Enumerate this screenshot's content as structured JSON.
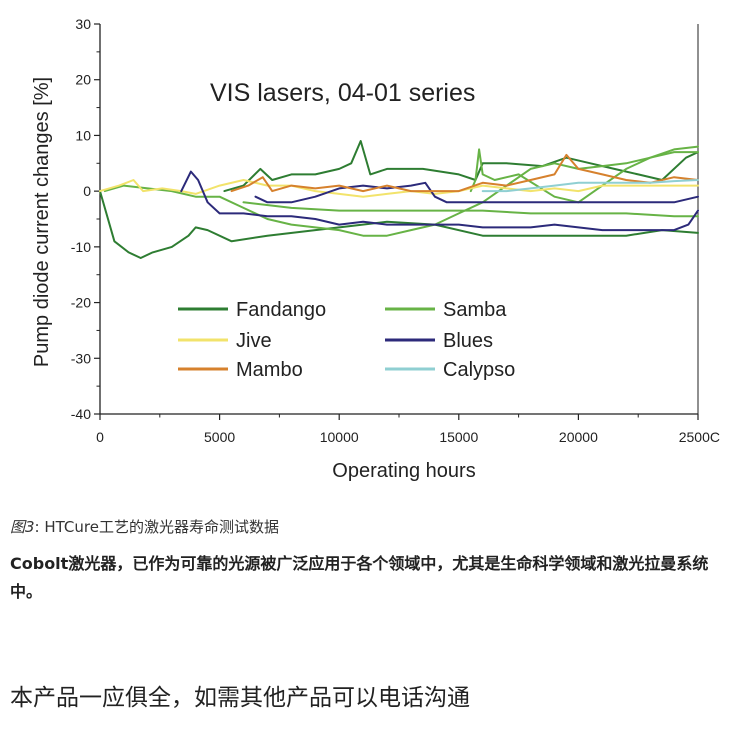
{
  "chart_data": {
    "type": "line",
    "title": "VIS lasers, 04-01 series",
    "xlabel": "Operating hours",
    "ylabel": "Pump diode current changes [%]",
    "xlim": [
      0,
      25000
    ],
    "ylim": [
      -40,
      30
    ],
    "x_ticks": [
      "0",
      "5000",
      "10000",
      "15000",
      "20000",
      "2500C"
    ],
    "y_ticks": [
      "30",
      "20",
      "10",
      "0",
      "-10",
      "-20",
      "-30",
      "-40"
    ],
    "grid": false,
    "legend_position": "lower-center",
    "series": [
      {
        "name": "Fandango",
        "color": "#2e7d32",
        "points": [
          [
            0,
            0
          ],
          [
            600,
            -9
          ],
          [
            1200,
            -11
          ],
          [
            1700,
            -12
          ],
          [
            2200,
            -11
          ],
          [
            3000,
            -10
          ],
          [
            3700,
            -8
          ],
          [
            4000,
            -6.5
          ],
          [
            4500,
            -7
          ],
          [
            5500,
            -9
          ],
          [
            7000,
            -8
          ],
          [
            9000,
            -7
          ],
          [
            10000,
            -6.5
          ],
          [
            12000,
            -5.5
          ],
          [
            14000,
            -6
          ],
          [
            16000,
            -8
          ],
          [
            18000,
            -8
          ],
          [
            20000,
            -8
          ],
          [
            22000,
            -8
          ],
          [
            23500,
            -7
          ],
          [
            25000,
            -7.5
          ]
        ]
      },
      {
        "name": "Fandango",
        "color": "#2e7d32",
        "points": [
          [
            5200,
            0
          ],
          [
            6000,
            1
          ],
          [
            6700,
            4
          ],
          [
            7200,
            2
          ],
          [
            8000,
            3
          ],
          [
            9000,
            3
          ],
          [
            10000,
            4
          ],
          [
            10500,
            5
          ],
          [
            10900,
            9
          ],
          [
            11300,
            3
          ],
          [
            12000,
            4
          ],
          [
            13500,
            4
          ],
          [
            15000,
            3
          ],
          [
            15700,
            2
          ],
          [
            16000,
            5
          ],
          [
            17000,
            5
          ],
          [
            18500,
            4.5
          ],
          [
            19500,
            6
          ],
          [
            20500,
            5
          ],
          [
            21500,
            4
          ],
          [
            22500,
            3
          ],
          [
            23500,
            2
          ],
          [
            24500,
            6
          ],
          [
            25000,
            7
          ]
        ]
      },
      {
        "name": "Samba",
        "color": "#67b346",
        "points": [
          [
            200,
            0
          ],
          [
            1000,
            1
          ],
          [
            2000,
            0.5
          ],
          [
            3000,
            0
          ],
          [
            4000,
            -1
          ],
          [
            5000,
            -1
          ],
          [
            6000,
            -3
          ],
          [
            7000,
            -5
          ],
          [
            8000,
            -6
          ],
          [
            9000,
            -6.5
          ],
          [
            10000,
            -7
          ],
          [
            11000,
            -8
          ],
          [
            12000,
            -8
          ],
          [
            13000,
            -7
          ],
          [
            14000,
            -6
          ],
          [
            15000,
            -4
          ],
          [
            16000,
            -2
          ],
          [
            17000,
            1
          ],
          [
            18000,
            4
          ],
          [
            19000,
            5
          ],
          [
            20000,
            4
          ],
          [
            21000,
            4.5
          ],
          [
            22000,
            5
          ],
          [
            23000,
            6
          ],
          [
            24000,
            7
          ],
          [
            25000,
            7
          ]
        ]
      },
      {
        "name": "Samba",
        "color": "#67b346",
        "points": [
          [
            6000,
            -2
          ],
          [
            8000,
            -3
          ],
          [
            10000,
            -3.5
          ],
          [
            12000,
            -3.5
          ],
          [
            14000,
            -3.5
          ],
          [
            16000,
            -3.5
          ],
          [
            18000,
            -4
          ],
          [
            20000,
            -4
          ],
          [
            22000,
            -4
          ],
          [
            24000,
            -4.5
          ],
          [
            25000,
            -4.5
          ]
        ]
      },
      {
        "name": "Samba",
        "color": "#67b346",
        "points": [
          [
            15500,
            0
          ],
          [
            15700,
            2
          ],
          [
            15850,
            7.5
          ],
          [
            16000,
            3
          ],
          [
            16500,
            2
          ],
          [
            17500,
            3
          ],
          [
            19000,
            -1
          ],
          [
            20000,
            -2
          ],
          [
            21000,
            1
          ],
          [
            22000,
            4
          ],
          [
            23000,
            6
          ],
          [
            24000,
            7.5
          ],
          [
            25000,
            8
          ]
        ]
      },
      {
        "name": "Jive",
        "color": "#f2e36b",
        "points": [
          [
            0,
            0
          ],
          [
            800,
            1
          ],
          [
            1400,
            2
          ],
          [
            1800,
            0
          ],
          [
            2600,
            0.5
          ],
          [
            3400,
            0
          ],
          [
            4000,
            -0.5
          ],
          [
            5000,
            1
          ],
          [
            6000,
            2
          ],
          [
            7000,
            1
          ],
          [
            8000,
            1
          ],
          [
            9000,
            0
          ],
          [
            10000,
            -0.5
          ],
          [
            11000,
            -1
          ],
          [
            12000,
            -0.5
          ],
          [
            13000,
            0
          ],
          [
            14000,
            -0.5
          ],
          [
            15000,
            0
          ],
          [
            16000,
            1
          ],
          [
            17000,
            0.5
          ],
          [
            18000,
            0
          ],
          [
            19000,
            0.5
          ],
          [
            20000,
            0
          ],
          [
            21000,
            1
          ],
          [
            22000,
            1
          ],
          [
            23000,
            1
          ],
          [
            24000,
            1
          ],
          [
            25000,
            1
          ]
        ]
      },
      {
        "name": "Blues",
        "color": "#2c2a7a",
        "points": [
          [
            3400,
            0
          ],
          [
            3800,
            3.5
          ],
          [
            4100,
            2
          ],
          [
            4500,
            -2
          ],
          [
            5000,
            -4
          ],
          [
            6000,
            -4
          ],
          [
            7000,
            -4.5
          ],
          [
            8000,
            -4.5
          ],
          [
            9000,
            -5
          ],
          [
            10000,
            -6
          ],
          [
            11000,
            -5.5
          ],
          [
            12000,
            -6
          ],
          [
            13000,
            -6
          ],
          [
            14000,
            -6
          ],
          [
            15000,
            -6
          ],
          [
            16000,
            -6.5
          ],
          [
            17000,
            -6.5
          ],
          [
            18000,
            -6.5
          ],
          [
            19000,
            -6
          ],
          [
            20000,
            -6.5
          ],
          [
            21000,
            -7
          ],
          [
            22000,
            -7
          ],
          [
            23000,
            -7
          ],
          [
            24000,
            -7
          ],
          [
            24600,
            -6
          ],
          [
            25000,
            -3.5
          ]
        ]
      },
      {
        "name": "Blues",
        "color": "#2c2a7a",
        "points": [
          [
            6500,
            -1
          ],
          [
            7000,
            -2
          ],
          [
            8000,
            -2
          ],
          [
            9000,
            -1
          ],
          [
            10000,
            0.5
          ],
          [
            11000,
            1
          ],
          [
            12000,
            0.5
          ],
          [
            13000,
            1
          ],
          [
            13600,
            1.5
          ],
          [
            14000,
            -1
          ],
          [
            14500,
            -2
          ],
          [
            16000,
            -2
          ],
          [
            18000,
            -2
          ],
          [
            20000,
            -2
          ],
          [
            22000,
            -2
          ],
          [
            24000,
            -2
          ],
          [
            25000,
            -1
          ]
        ]
      },
      {
        "name": "Mambo",
        "color": "#d6812d",
        "points": [
          [
            5500,
            0
          ],
          [
            6200,
            1
          ],
          [
            6800,
            2.5
          ],
          [
            7200,
            0
          ],
          [
            8000,
            1
          ],
          [
            9000,
            0.5
          ],
          [
            10000,
            1
          ],
          [
            11000,
            0
          ],
          [
            12000,
            1
          ],
          [
            13000,
            0
          ],
          [
            14000,
            0
          ],
          [
            15000,
            0
          ],
          [
            16000,
            1.5
          ],
          [
            17000,
            1
          ],
          [
            18000,
            2
          ],
          [
            19000,
            3
          ],
          [
            19500,
            6.5
          ],
          [
            20000,
            4
          ],
          [
            21000,
            3
          ],
          [
            22000,
            2
          ],
          [
            23000,
            1.5
          ],
          [
            24000,
            2.5
          ],
          [
            25000,
            2
          ]
        ]
      },
      {
        "name": "Calypso",
        "color": "#8fcfd2",
        "points": [
          [
            16000,
            0
          ],
          [
            17000,
            0
          ],
          [
            18000,
            0.5
          ],
          [
            19000,
            1
          ],
          [
            20000,
            1.5
          ],
          [
            21000,
            1.5
          ],
          [
            22000,
            1.5
          ],
          [
            23000,
            1.5
          ],
          [
            24000,
            1.8
          ],
          [
            25000,
            2
          ]
        ]
      }
    ],
    "legend": [
      {
        "name": "Fandango",
        "color": "#2e7d32"
      },
      {
        "name": "Samba",
        "color": "#67b346"
      },
      {
        "name": "Jive",
        "color": "#f2e36b"
      },
      {
        "name": "Blues",
        "color": "#2c2a7a"
      },
      {
        "name": "Mambo",
        "color": "#d6812d"
      },
      {
        "name": "Calypso",
        "color": "#8fcfd2"
      }
    ]
  },
  "caption": {
    "figure_label": "图3",
    "figure_text": ": HTCure工艺的激光器寿命测试数据",
    "bold_text": "Cobolt激光器，已作为可靠的光源被广泛应用于各个领域中，尤其是生命科学领域和激光拉曼系统中。",
    "footer_text": "本产品一应俱全，如需其他产品可以电话沟通"
  }
}
